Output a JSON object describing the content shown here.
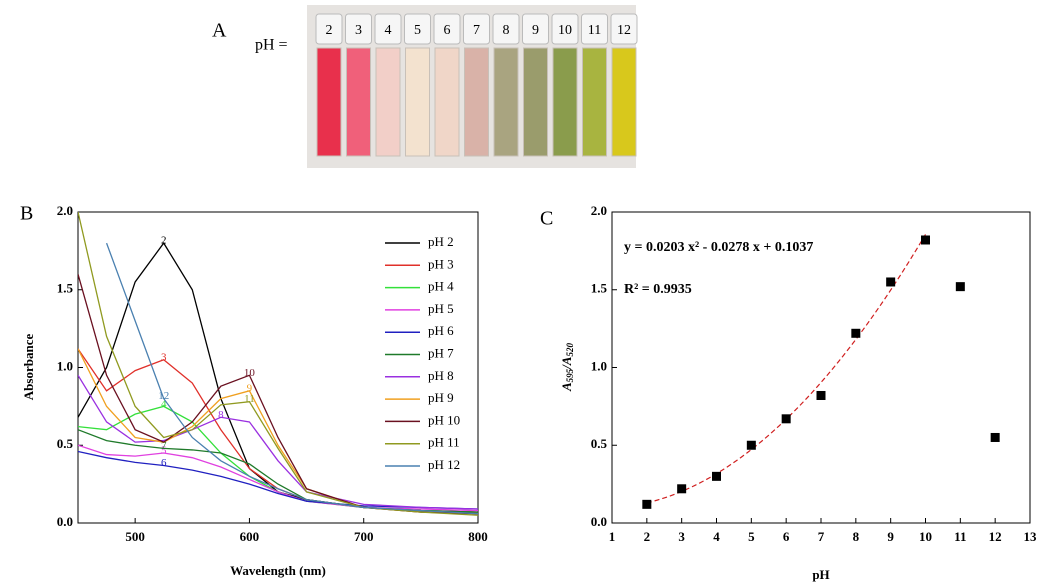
{
  "panel_a": {
    "panel": "A",
    "prefix": "pH =",
    "cuvettes": [
      {
        "label": "2",
        "color": "#e8304c"
      },
      {
        "label": "3",
        "color": "#f0607a"
      },
      {
        "label": "4",
        "color": "#f2cfc8"
      },
      {
        "label": "5",
        "color": "#f3e2cf"
      },
      {
        "label": "6",
        "color": "#f0d6c8"
      },
      {
        "label": "7",
        "color": "#d9b2a8"
      },
      {
        "label": "8",
        "color": "#a9a480"
      },
      {
        "label": "9",
        "color": "#9a9c6c"
      },
      {
        "label": "10",
        "color": "#8a9c4c"
      },
      {
        "label": "11",
        "color": "#a8b440"
      },
      {
        "label": "12",
        "color": "#d8c81c"
      }
    ]
  },
  "chart_data": [
    {
      "type": "line",
      "panel": "B",
      "xlabel": "Wavelength (nm)",
      "ylabel": "Absorbance",
      "x": [
        450,
        475,
        500,
        525,
        550,
        575,
        600,
        625,
        650,
        700,
        750,
        800
      ],
      "xlim": [
        450,
        800
      ],
      "xticks": [
        500,
        600,
        700,
        800
      ],
      "ylim": [
        0,
        2
      ],
      "yticks": [
        {
          "value": 0,
          "label": "0.0"
        },
        {
          "value": 0.5,
          "label": "0.5"
        },
        {
          "value": 1,
          "label": "1.0"
        },
        {
          "value": 1.5,
          "label": "1.5"
        },
        {
          "value": 2,
          "label": "2.0"
        }
      ],
      "series": [
        {
          "name": "pH 2",
          "label": "2",
          "color": "#000000",
          "values": [
            0.68,
            1.0,
            1.55,
            1.8,
            1.5,
            0.8,
            0.35,
            0.2,
            0.15,
            0.1,
            0.08,
            0.07
          ]
        },
        {
          "name": "pH 3",
          "label": "3",
          "color": "#e0302a",
          "values": [
            1.12,
            0.85,
            0.98,
            1.05,
            0.9,
            0.6,
            0.35,
            0.22,
            0.15,
            0.1,
            0.08,
            0.07
          ]
        },
        {
          "name": "pH 4",
          "label": "4",
          "color": "#33e03a",
          "values": [
            0.62,
            0.6,
            0.7,
            0.75,
            0.65,
            0.45,
            0.3,
            0.2,
            0.14,
            0.1,
            0.08,
            0.07
          ]
        },
        {
          "name": "pH 5",
          "label": "5",
          "color": "#e040e0",
          "values": [
            0.5,
            0.44,
            0.43,
            0.45,
            0.42,
            0.36,
            0.28,
            0.2,
            0.14,
            0.1,
            0.09,
            0.08
          ]
        },
        {
          "name": "pH 6",
          "label": "6",
          "color": "#2020c0",
          "values": [
            0.46,
            0.42,
            0.39,
            0.37,
            0.34,
            0.3,
            0.25,
            0.19,
            0.14,
            0.11,
            0.1,
            0.09
          ]
        },
        {
          "name": "pH 7",
          "label": "7",
          "color": "#1f7a2a",
          "values": [
            0.6,
            0.53,
            0.5,
            0.48,
            0.47,
            0.45,
            0.38,
            0.25,
            0.15,
            0.1,
            0.08,
            0.07
          ]
        },
        {
          "name": "pH 8",
          "label": "8",
          "color": "#9a30e0",
          "values": [
            0.95,
            0.65,
            0.52,
            0.53,
            0.6,
            0.68,
            0.65,
            0.4,
            0.2,
            0.12,
            0.1,
            0.09
          ]
        },
        {
          "name": "pH 9",
          "label": "9",
          "color": "#f0a020",
          "values": [
            1.12,
            0.75,
            0.55,
            0.52,
            0.62,
            0.8,
            0.85,
            0.5,
            0.22,
            0.1,
            0.07,
            0.06
          ]
        },
        {
          "name": "pH 10",
          "label": "10",
          "color": "#6a1020",
          "values": [
            1.6,
            0.95,
            0.6,
            0.52,
            0.65,
            0.88,
            0.95,
            0.55,
            0.22,
            0.1,
            0.07,
            0.06
          ]
        },
        {
          "name": "pH 11",
          "label": "11",
          "color": "#909a20",
          "values": [
            2.0,
            1.2,
            0.75,
            0.55,
            0.6,
            0.76,
            0.78,
            0.48,
            0.2,
            0.1,
            0.07,
            0.05
          ]
        },
        {
          "name": "pH 12",
          "label": "12",
          "color": "#4a80b0",
          "values": [
            null,
            1.8,
            1.3,
            0.8,
            0.55,
            0.4,
            0.3,
            0.22,
            0.15,
            0.1,
            0.08,
            0.06
          ]
        }
      ]
    },
    {
      "type": "scatter",
      "panel": "C",
      "xlabel": "pH",
      "ylabel_parts": [
        "A",
        "595",
        "/A",
        "520"
      ],
      "x": [
        2,
        3,
        4,
        5,
        6,
        7,
        8,
        9,
        10,
        11,
        12
      ],
      "values": [
        0.12,
        0.22,
        0.3,
        0.5,
        0.67,
        0.82,
        1.22,
        1.55,
        1.82,
        1.52,
        0.55
      ],
      "color": "#000000",
      "xlim": [
        1,
        13
      ],
      "xticks": [
        1,
        2,
        3,
        4,
        5,
        6,
        7,
        8,
        9,
        10,
        11,
        12,
        13
      ],
      "ylim": [
        0,
        2
      ],
      "yticks": [
        {
          "value": 0,
          "label": "0.0"
        },
        {
          "value": 0.5,
          "label": "0.5"
        },
        {
          "value": 1,
          "label": "1.0"
        },
        {
          "value": 1.5,
          "label": "1.5"
        },
        {
          "value": 2,
          "label": "2.0"
        }
      ],
      "fit": {
        "coefficients": [
          0.0203,
          -0.0278,
          0.1037
        ],
        "x_range": [
          2,
          10
        ],
        "color": "#d02020",
        "equation": "y = 0.0203 x² - 0.0278 x + 0.1037",
        "r_squared": "R² = 0.9935"
      }
    }
  ]
}
